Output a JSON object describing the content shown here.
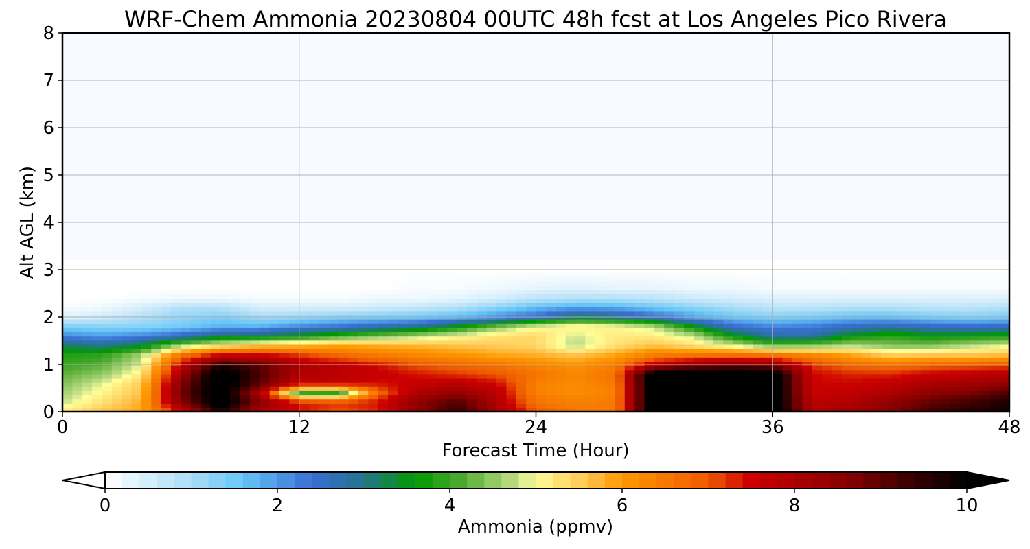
{
  "chart_data": {
    "type": "heatmap",
    "title": "WRF-Chem Ammonia  20230804 00UTC 48h fcst at Los Angeles Pico Rivera",
    "xlabel": "Forecast Time (Hour)",
    "ylabel": "Alt AGL (km)",
    "xlim": [
      0,
      48
    ],
    "ylim": [
      0,
      8
    ],
    "xticks": [
      0,
      12,
      24,
      36,
      48
    ],
    "yticks": [
      0,
      1,
      2,
      3,
      4,
      5,
      6,
      7,
      8
    ],
    "grid": true,
    "colorbar": {
      "label": "Ammonia  (ppmv)",
      "range": [
        0,
        10
      ],
      "ticks": [
        0,
        2,
        4,
        6,
        8,
        10
      ],
      "extend": "both",
      "orientation": "horizontal",
      "colors": [
        {
          "v": 0.0,
          "c": "#ffffff"
        },
        {
          "v": 1.0,
          "c": "#a9dcf7"
        },
        {
          "v": 1.6,
          "c": "#66c6f7"
        },
        {
          "v": 2.4,
          "c": "#3a6ed4"
        },
        {
          "v": 3.0,
          "c": "#25748c"
        },
        {
          "v": 3.6,
          "c": "#009900"
        },
        {
          "v": 4.1,
          "c": "#4ba82e"
        },
        {
          "v": 4.8,
          "c": "#c6e18a"
        },
        {
          "v": 5.0,
          "c": "#ffff99"
        },
        {
          "v": 5.6,
          "c": "#ffc34d"
        },
        {
          "v": 6.0,
          "c": "#ff9900"
        },
        {
          "v": 7.0,
          "c": "#ee5a00"
        },
        {
          "v": 7.5,
          "c": "#cc0000"
        },
        {
          "v": 8.6,
          "c": "#880000"
        },
        {
          "v": 9.4,
          "c": "#350000"
        },
        {
          "v": 10.0,
          "c": "#000000"
        }
      ]
    },
    "profile_hours": [
      0,
      2,
      4,
      6,
      8,
      10,
      12,
      14,
      16,
      18,
      20,
      22,
      24,
      26,
      28,
      30,
      32,
      34,
      36,
      38,
      40,
      42,
      44,
      46,
      48
    ],
    "altitude_km": [
      0,
      0.2,
      0.4,
      0.6,
      0.8,
      1.0,
      1.2,
      1.4,
      1.6,
      1.8,
      2.0,
      2.2,
      2.4,
      2.6,
      3.0,
      8.0
    ],
    "ammonia_ppmv": [
      [
        5.2,
        5.6,
        5.9,
        7.5,
        9.6,
        8.0,
        7.4,
        7.0,
        7.3,
        8.5,
        9.4,
        8.2,
        7.0,
        6.5,
        6.5,
        10.5,
        10.5,
        10.5,
        10.5,
        8.0,
        8.2,
        8.6,
        9.3,
        9.6,
        9.8
      ],
      [
        4.8,
        5.3,
        5.8,
        8.5,
        10.5,
        8.5,
        7.4,
        7.2,
        7.4,
        8.5,
        9.2,
        8.0,
        6.6,
        6.4,
        6.5,
        10.5,
        10.5,
        10.5,
        10.5,
        7.8,
        8.0,
        8.5,
        9.0,
        9.3,
        9.7
      ],
      [
        4.6,
        5.1,
        5.6,
        8.8,
        10.5,
        8.0,
        4.0,
        3.9,
        6.8,
        8.0,
        8.4,
        7.8,
        6.4,
        6.2,
        6.4,
        10.5,
        10.5,
        10.5,
        10.5,
        7.6,
        7.7,
        8.0,
        8.5,
        8.7,
        9.2
      ],
      [
        4.4,
        4.9,
        5.5,
        8.6,
        10.5,
        9.0,
        7.6,
        7.6,
        7.4,
        7.6,
        7.8,
        7.5,
        6.4,
        6.2,
        6.5,
        10.5,
        10.5,
        10.5,
        10.5,
        7.5,
        7.5,
        7.7,
        8.0,
        8.2,
        8.4
      ],
      [
        4.2,
        4.5,
        5.2,
        8.2,
        10.5,
        9.2,
        8.0,
        7.8,
        7.6,
        7.4,
        7.2,
        7.0,
        6.6,
        6.3,
        6.6,
        10.5,
        10.5,
        10.5,
        10.5,
        7.5,
        7.3,
        7.3,
        7.6,
        7.7,
        7.9
      ],
      [
        4.0,
        4.2,
        4.9,
        7.6,
        9.6,
        9.0,
        8.0,
        7.7,
        7.4,
        7.0,
        6.8,
        6.6,
        6.3,
        6.1,
        6.4,
        7.8,
        8.5,
        8.8,
        8.6,
        7.2,
        6.8,
        6.6,
        6.8,
        6.9,
        7.0
      ],
      [
        3.8,
        3.9,
        4.6,
        6.6,
        7.6,
        7.6,
        7.2,
        6.8,
        6.5,
        6.3,
        6.1,
        5.9,
        5.8,
        5.6,
        5.9,
        6.5,
        6.6,
        6.7,
        6.6,
        6.3,
        5.9,
        5.5,
        5.6,
        5.6,
        5.7
      ],
      [
        3.2,
        3.0,
        3.4,
        4.6,
        5.2,
        5.6,
        5.7,
        5.9,
        5.8,
        5.7,
        5.6,
        5.5,
        5.4,
        4.7,
        5.3,
        5.6,
        5.3,
        4.9,
        4.3,
        4.4,
        4.7,
        4.4,
        4.4,
        4.7,
        4.9
      ],
      [
        2.2,
        2.0,
        2.2,
        2.6,
        3.2,
        3.3,
        3.6,
        4.0,
        4.4,
        4.7,
        5.0,
        5.3,
        5.4,
        4.8,
        5.2,
        5.2,
        4.8,
        3.6,
        2.8,
        2.8,
        3.6,
        3.9,
        3.6,
        3.7,
        3.8
      ],
      [
        1.4,
        1.3,
        1.3,
        1.5,
        1.8,
        1.8,
        2.2,
        2.4,
        2.7,
        3.0,
        3.6,
        4.4,
        5.0,
        5.2,
        5.1,
        4.8,
        3.6,
        2.5,
        2.2,
        2.3,
        2.6,
        2.8,
        2.6,
        2.5,
        2.6
      ],
      [
        0.4,
        0.6,
        0.9,
        1.2,
        1.4,
        1.1,
        1.2,
        1.4,
        1.5,
        1.6,
        1.8,
        2.2,
        2.6,
        3.3,
        3.1,
        2.6,
        2.0,
        1.6,
        1.4,
        1.5,
        1.7,
        1.7,
        1.5,
        1.4,
        1.5
      ],
      [
        0.1,
        0.2,
        0.5,
        0.9,
        0.9,
        0.5,
        0.5,
        0.5,
        0.6,
        0.7,
        0.9,
        1.3,
        1.7,
        2.0,
        1.9,
        1.6,
        1.3,
        1.0,
        0.8,
        0.8,
        0.9,
        0.9,
        0.8,
        0.8,
        0.9
      ],
      [
        0.0,
        0.0,
        0.1,
        0.2,
        0.2,
        0.1,
        0.1,
        0.1,
        0.2,
        0.2,
        0.3,
        0.5,
        0.8,
        0.9,
        0.9,
        0.8,
        0.6,
        0.5,
        0.4,
        0.4,
        0.4,
        0.4,
        0.4,
        0.4,
        0.4
      ],
      [
        0.0,
        0.0,
        0.0,
        0.0,
        0.0,
        0.0,
        0.0,
        0.0,
        0.0,
        0.1,
        0.1,
        0.2,
        0.3,
        0.4,
        0.3,
        0.3,
        0.2,
        0.2,
        0.1,
        0.1,
        0.1,
        0.1,
        0.1,
        0.1,
        0.1
      ],
      [
        0.0,
        0.0,
        0.0,
        0.0,
        0.0,
        0.0,
        0.0,
        0.0,
        0.0,
        0.0,
        0.0,
        0.0,
        0.0,
        0.0,
        0.0,
        0.0,
        0.0,
        0.0,
        0.0,
        0.0,
        0.0,
        0.0,
        0.0,
        0.0,
        0.0
      ],
      [
        0.0,
        0.0,
        0.0,
        0.0,
        0.0,
        0.0,
        0.0,
        0.0,
        0.0,
        0.0,
        0.0,
        0.0,
        0.0,
        0.0,
        0.0,
        0.0,
        0.0,
        0.0,
        0.0,
        0.0,
        0.0,
        0.0,
        0.0,
        0.0,
        0.0
      ]
    ]
  }
}
